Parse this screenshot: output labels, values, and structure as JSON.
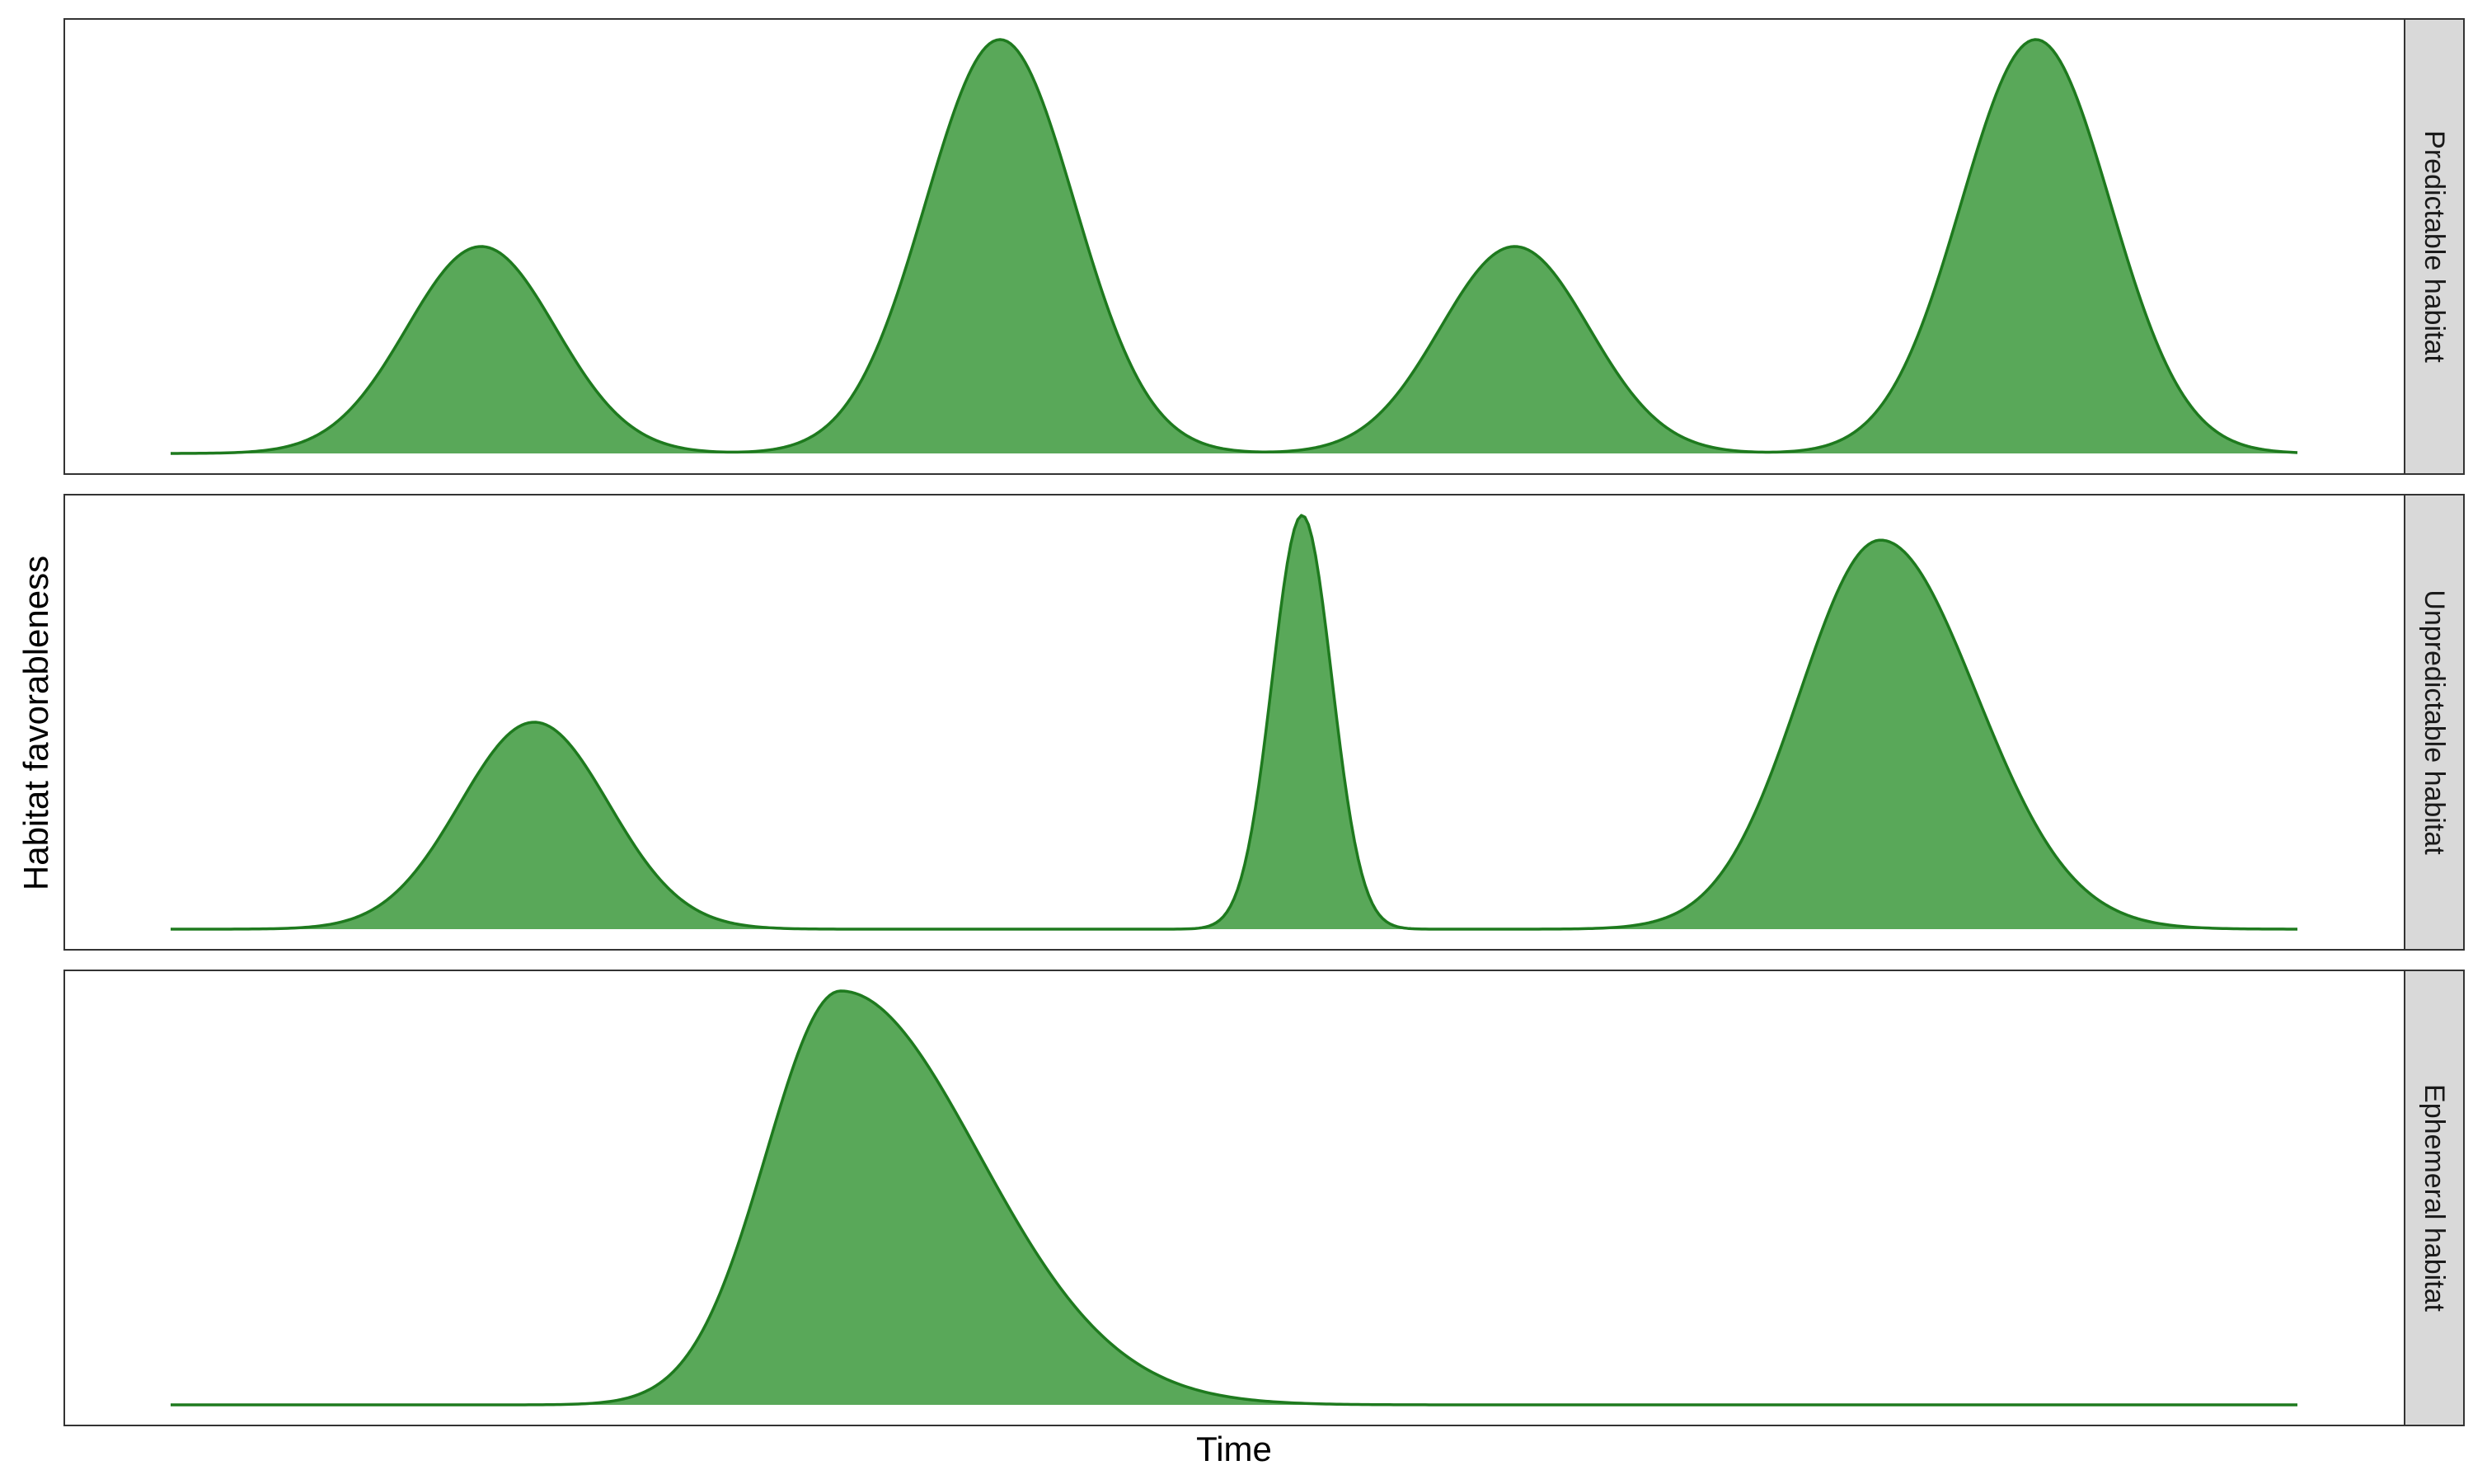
{
  "colors": {
    "fill": "#59a859",
    "line": "#1e7a1e",
    "panel_border": "#333333",
    "strip_bg": "#d9d9d9",
    "background": "#ffffff"
  },
  "chart_data": {
    "type": "area",
    "title": "",
    "xlabel": "Time",
    "ylabel": "Habitat favorableness",
    "xlim": [
      0,
      100
    ],
    "ylim": [
      0,
      1
    ],
    "grid": false,
    "legend": "none",
    "facets": [
      {
        "label": "Predictable habitat",
        "peaks": [
          {
            "center": 14.6,
            "height": 0.5,
            "width_left": 3.5,
            "width_right": 3.5
          },
          {
            "center": 39.0,
            "height": 1.0,
            "width_left": 3.5,
            "width_right": 3.5
          },
          {
            "center": 63.2,
            "height": 0.5,
            "width_left": 3.5,
            "width_right": 3.5
          },
          {
            "center": 87.7,
            "height": 1.0,
            "width_left": 3.5,
            "width_right": 3.5
          }
        ]
      },
      {
        "label": "Unpredictable habitat",
        "peaks": [
          {
            "center": 17.1,
            "height": 0.5,
            "width_left": 3.5,
            "width_right": 3.5
          },
          {
            "center": 53.2,
            "height": 1.0,
            "width_left": 1.4,
            "width_right": 1.4
          },
          {
            "center": 80.4,
            "height": 0.94,
            "width_left": 3.8,
            "width_right": 4.5
          }
        ]
      },
      {
        "label": "Ephemeral habitat",
        "peaks": [
          {
            "center": 31.5,
            "height": 1.0,
            "width_left": 3.5,
            "width_right": 6.5
          }
        ]
      }
    ]
  }
}
